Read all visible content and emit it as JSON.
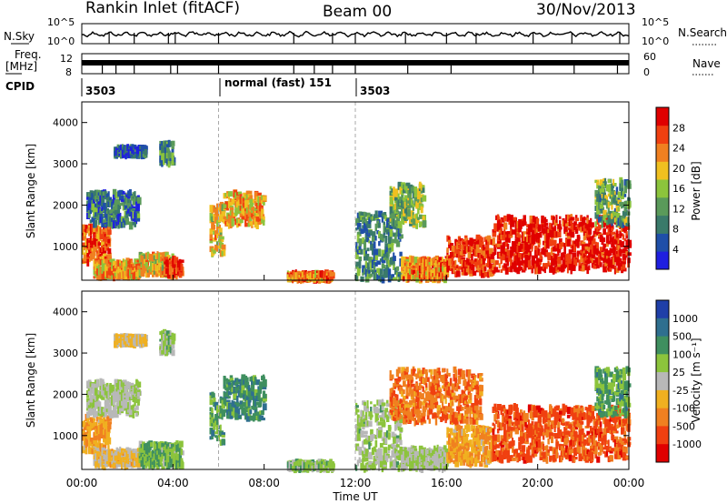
{
  "header": {
    "station": "Rankin Inlet (fitACF)",
    "beam": "Beam 00",
    "date": "30/Nov/2013"
  },
  "status_panels": {
    "nsky_label": "N.Sky",
    "nsearch_label": "N.Search",
    "freq_label_1": "Freq.",
    "freq_label_2": "[MHz]",
    "nave_label": "Nave",
    "cpid_label": "CPID",
    "nsky_ticks": [
      "10^5",
      "10^0"
    ],
    "nsearch_ticks": [
      "10^5",
      "10^0"
    ],
    "freq_ticks": [
      "12",
      "8"
    ],
    "nave_ticks": [
      "60",
      "0"
    ],
    "cpid_segments": [
      {
        "label": "3503",
        "start_h": 0,
        "end_h": 6
      },
      {
        "label": "normal (fast) 151",
        "start_h": 6,
        "end_h": 12
      },
      {
        "label": "3503",
        "start_h": 12,
        "end_h": 24
      }
    ]
  },
  "xaxis": {
    "label": "Time UT",
    "ticks": [
      "00:00",
      "04:00",
      "08:00",
      "12:00",
      "16:00",
      "20:00",
      "00:00"
    ],
    "range_h": [
      0,
      24
    ]
  },
  "yaxis": {
    "label": "Slant Range [km]",
    "ticks": [
      "1000",
      "2000",
      "3000",
      "4000"
    ],
    "range_km": [
      180,
      4500
    ]
  },
  "power_colorbar": {
    "label": "Power [dB]",
    "ticks": [
      "28",
      "24",
      "20",
      "16",
      "12",
      "8",
      "4"
    ],
    "colors": [
      "#1f1fe0",
      "#1f4fa8",
      "#3a7a6a",
      "#5a9a5a",
      "#8cc43c",
      "#f0c020",
      "#f08020",
      "#f04010",
      "#e00000"
    ]
  },
  "velocity_colorbar": {
    "label": "Velocity [m s⁻¹]",
    "ticks": [
      "1000",
      "500",
      "100",
      "25",
      "-25",
      "-100",
      "-500",
      "-1000"
    ],
    "colors": [
      "#1f3fa8",
      "#2f6f8f",
      "#3f8f5f",
      "#8cc43c",
      "#b8b8b8",
      "#f0b020",
      "#f08020",
      "#f04010",
      "#e00000"
    ]
  },
  "chart_data": [
    {
      "type": "heatmap",
      "title": "Power [dB]",
      "xlabel": "Time UT",
      "ylabel": "Slant Range [km]",
      "xlim_h": [
        0,
        24
      ],
      "ylim_km": [
        180,
        4500
      ],
      "zlim_db": [
        0,
        30
      ],
      "blobs": [
        {
          "t0": 0.0,
          "t1": 1.2,
          "r0": 600,
          "r1": 1500,
          "v": 24
        },
        {
          "t0": 0.5,
          "t1": 2.5,
          "r0": 250,
          "r1": 650,
          "v": 20
        },
        {
          "t0": 2.5,
          "t1": 4.0,
          "r0": 300,
          "r1": 800,
          "v": 18
        },
        {
          "t0": 3.6,
          "t1": 4.4,
          "r0": 250,
          "r1": 700,
          "v": 26
        },
        {
          "t0": 0.2,
          "t1": 2.5,
          "r0": 1500,
          "r1": 2300,
          "v": 8
        },
        {
          "t0": 1.4,
          "t1": 2.8,
          "r0": 3200,
          "r1": 3400,
          "v": 6
        },
        {
          "t0": 3.4,
          "t1": 4.0,
          "r0": 3000,
          "r1": 3500,
          "v": 10
        },
        {
          "t0": 5.6,
          "t1": 6.2,
          "r0": 800,
          "r1": 2000,
          "v": 18
        },
        {
          "t0": 6.2,
          "t1": 8.0,
          "r0": 1500,
          "r1": 2300,
          "v": 20
        },
        {
          "t0": 9.0,
          "t1": 11.0,
          "r0": 180,
          "r1": 350,
          "v": 22
        },
        {
          "t0": 12.0,
          "t1": 14.0,
          "r0": 180,
          "r1": 1800,
          "v": 10
        },
        {
          "t0": 13.5,
          "t1": 15.0,
          "r0": 1500,
          "r1": 2500,
          "v": 14
        },
        {
          "t0": 14.0,
          "t1": 16.0,
          "r0": 180,
          "r1": 700,
          "v": 22
        },
        {
          "t0": 16.0,
          "t1": 18.0,
          "r0": 300,
          "r1": 1200,
          "v": 26
        },
        {
          "t0": 18.0,
          "t1": 24.0,
          "r0": 400,
          "r1": 1700,
          "v": 28
        },
        {
          "t0": 22.5,
          "t1": 24.0,
          "r0": 1500,
          "r1": 2600,
          "v": 12
        }
      ]
    },
    {
      "type": "heatmap",
      "title": "Velocity [m s⁻¹]",
      "xlabel": "Time UT",
      "ylabel": "Slant Range [km]",
      "xlim_h": [
        0,
        24
      ],
      "ylim_km": [
        180,
        4500
      ],
      "zlim_ms": [
        -1000,
        1000
      ],
      "blobs": [
        {
          "t0": 0.0,
          "t1": 1.2,
          "r0": 600,
          "r1": 1500,
          "v": -300
        },
        {
          "t0": 0.5,
          "t1": 2.5,
          "r0": 250,
          "r1": 650,
          "v": -150
        },
        {
          "t0": 2.5,
          "t1": 4.4,
          "r0": 250,
          "r1": 800,
          "v": 300
        },
        {
          "t0": 0.2,
          "t1": 2.5,
          "r0": 1500,
          "r1": 2300,
          "v": 100
        },
        {
          "t0": 1.4,
          "t1": 2.8,
          "r0": 3200,
          "r1": 3400,
          "v": -100
        },
        {
          "t0": 3.4,
          "t1": 4.0,
          "r0": 3000,
          "r1": 3500,
          "v": 200
        },
        {
          "t0": 5.6,
          "t1": 6.2,
          "r0": 800,
          "r1": 2000,
          "v": 400
        },
        {
          "t0": 6.2,
          "t1": 8.0,
          "r0": 1400,
          "r1": 2400,
          "v": 500
        },
        {
          "t0": 9.0,
          "t1": 11.0,
          "r0": 180,
          "r1": 350,
          "v": 200
        },
        {
          "t0": 12.0,
          "t1": 14.0,
          "r0": 180,
          "r1": 1800,
          "v": 150
        },
        {
          "t0": 13.5,
          "t1": 17.5,
          "r0": 1300,
          "r1": 2600,
          "v": -500
        },
        {
          "t0": 14.0,
          "t1": 16.0,
          "r0": 180,
          "r1": 700,
          "v": 100
        },
        {
          "t0": 16.0,
          "t1": 18.0,
          "r0": 300,
          "r1": 1200,
          "v": -300
        },
        {
          "t0": 18.0,
          "t1": 24.0,
          "r0": 400,
          "r1": 1700,
          "v": -600
        },
        {
          "t0": 22.5,
          "t1": 24.0,
          "r0": 1500,
          "r1": 2600,
          "v": 400
        }
      ]
    }
  ]
}
